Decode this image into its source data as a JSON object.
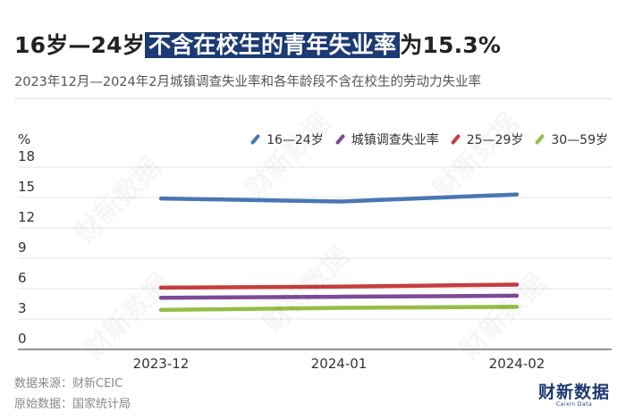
{
  "title": {
    "pre": "16岁—24岁",
    "highlight": "不含在校生的青年失业率",
    "post": "为15.3%"
  },
  "subtitle": "2023年12月—2024年2月城镇调查失业率和各年龄段不含在校生的劳动力失业率",
  "colors": {
    "accent": "#1c3a73"
  },
  "footer": {
    "source": "数据来源：财新CEIC",
    "raw": "原始数据：国家统计局"
  },
  "logo": {
    "main": "财新数据",
    "sub": "Caixin Data"
  },
  "watermark": "财新数据",
  "chart_data": {
    "type": "line",
    "ylabel": "%",
    "ylim": [
      0,
      18
    ],
    "yticks": [
      0,
      3,
      6,
      9,
      12,
      15,
      18
    ],
    "categories": [
      "2023-12",
      "2024-01",
      "2024-02"
    ],
    "legend_position": "top-right",
    "series": [
      {
        "name": "16—24岁",
        "color": "#4a76b4",
        "values": [
          14.9,
          14.6,
          15.3
        ]
      },
      {
        "name": "城镇调查失业率",
        "color": "#7d4a9a",
        "values": [
          5.1,
          5.2,
          5.3
        ]
      },
      {
        "name": "25—29岁",
        "color": "#c63d3e",
        "values": [
          6.1,
          6.2,
          6.4
        ]
      },
      {
        "name": "30—59岁",
        "color": "#97bd46",
        "values": [
          3.9,
          4.1,
          4.2
        ]
      }
    ]
  }
}
